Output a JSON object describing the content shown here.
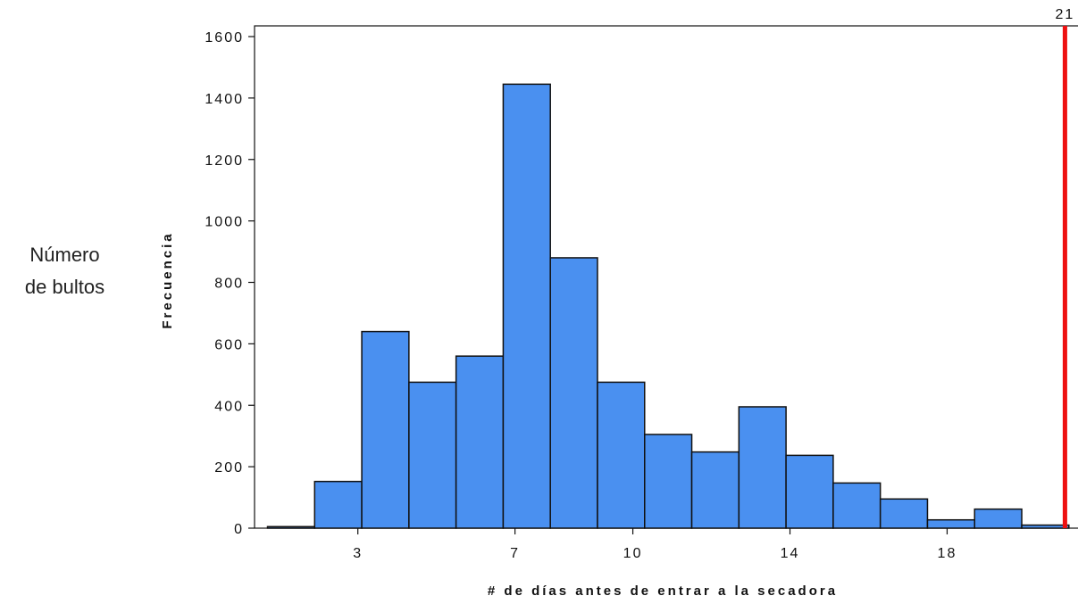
{
  "side_label": {
    "line1": "Número",
    "line2": "de bultos"
  },
  "chart_data": {
    "type": "bar",
    "title": "",
    "xlabel": "# de días antes de entrar a la secadora",
    "ylabel": "Frecuencia",
    "xlim": [
      0.37,
      21.4
    ],
    "ylim": [
      0,
      1600
    ],
    "yticks": [
      0,
      200,
      400,
      600,
      800,
      1000,
      1200,
      1400,
      1600
    ],
    "xticks": [
      3,
      7,
      10,
      14,
      18
    ],
    "bin_edges": [
      0.7,
      1.9,
      3.1,
      4.3,
      5.5,
      6.7,
      7.9,
      9.1,
      10.3,
      11.5,
      12.7,
      13.9,
      15.1,
      16.3,
      17.5,
      18.7,
      19.9,
      21.1
    ],
    "values": [
      5,
      152,
      640,
      475,
      560,
      1445,
      880,
      475,
      305,
      248,
      395,
      237,
      147,
      95,
      27,
      62,
      10
    ],
    "bar_color": "#4a90f0",
    "reference_line": {
      "x": 21,
      "label": "21",
      "color": "#ee1111"
    },
    "grid": false,
    "legend": "none"
  }
}
